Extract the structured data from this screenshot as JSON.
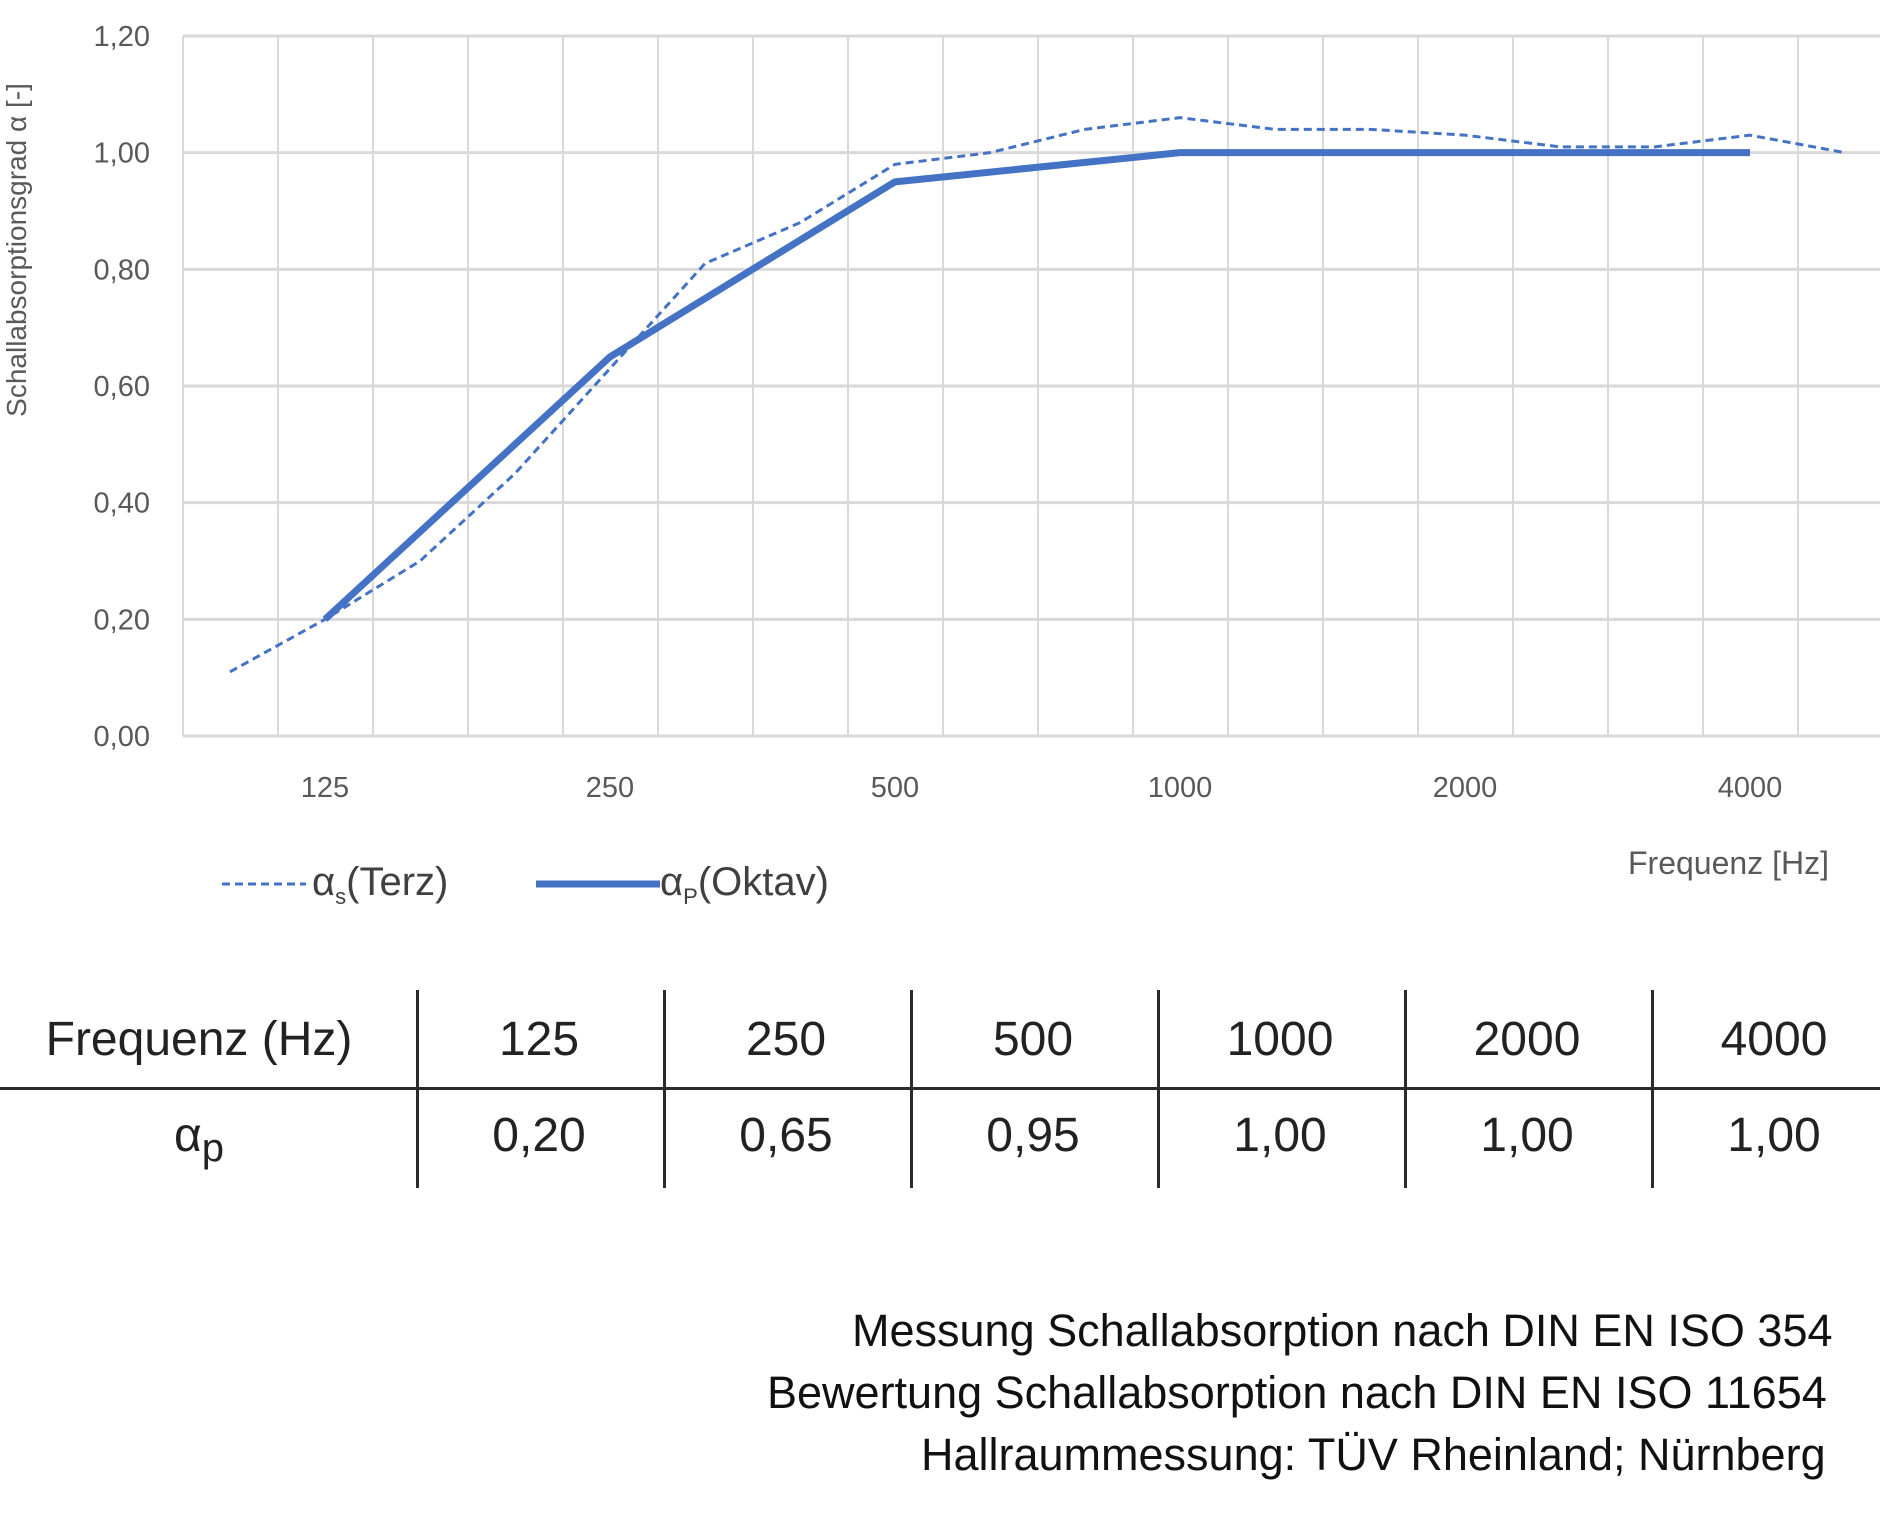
{
  "chart_data": {
    "type": "line",
    "ylabel": "Schallabsorptionsgrad α [-]",
    "xlabel": "Frequenz [Hz]",
    "ylim": [
      0,
      1.2
    ],
    "yticks": [
      "0,00",
      "0,20",
      "0,40",
      "0,60",
      "0,80",
      "1,00",
      "1,20"
    ],
    "xtick_labels": [
      "125",
      "250",
      "500",
      "1000",
      "2000",
      "4000"
    ],
    "grid": true,
    "x_bands": [
      "100",
      "125",
      "160",
      "200",
      "250",
      "315",
      "400",
      "500",
      "630",
      "800",
      "1000",
      "1250",
      "1600",
      "2000",
      "2500",
      "3150",
      "4000",
      "5000"
    ],
    "series": [
      {
        "name": "αs (Terz)",
        "style": "dashed",
        "x": [
          "100",
          "125",
          "160",
          "200",
          "250",
          "315",
          "400",
          "500",
          "630",
          "800",
          "1000",
          "1250",
          "1600",
          "2000",
          "2500",
          "3150",
          "4000",
          "5000"
        ],
        "values": [
          0.11,
          0.2,
          0.3,
          0.45,
          0.63,
          0.81,
          0.88,
          0.98,
          1.0,
          1.04,
          1.06,
          1.04,
          1.04,
          1.03,
          1.01,
          1.01,
          1.03,
          1.0
        ]
      },
      {
        "name": "αP (Oktav)",
        "style": "solid",
        "x": [
          "125",
          "250",
          "500",
          "1000",
          "2000",
          "4000"
        ],
        "values": [
          0.2,
          0.65,
          0.95,
          1.0,
          1.0,
          1.0
        ]
      }
    ],
    "legend_position": "bottom-left",
    "color": "#4472C4"
  },
  "legend": {
    "terz": {
      "alpha": "α",
      "sub": "s",
      "label": "(Terz)"
    },
    "oktav": {
      "alpha": "α",
      "sub": "P",
      "label": "(Oktav)"
    }
  },
  "table": {
    "header_label": "Frequenz (Hz)",
    "row_label_alpha": "α",
    "row_label_sub": "p",
    "frequencies": [
      "125",
      "250",
      "500",
      "1000",
      "2000",
      "4000"
    ],
    "values": [
      "0,20",
      "0,65",
      "0,95",
      "1,00",
      "1,00",
      "1,00"
    ]
  },
  "footer": [
    "Messung Schallabsorption nach DIN EN ISO 354",
    "Bewertung Schallabsorption nach DIN EN ISO 11654",
    "Hallraummessung: TÜV Rheinland; Nürnberg"
  ]
}
